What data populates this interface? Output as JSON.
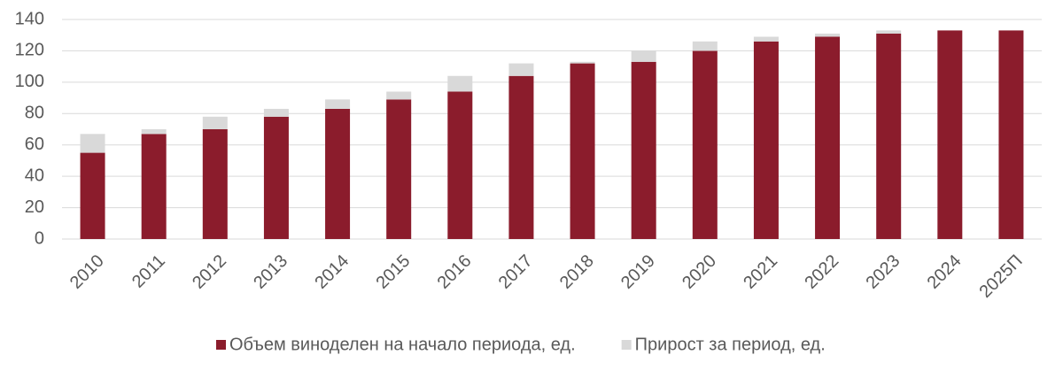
{
  "chart_data": {
    "type": "stacked_bar",
    "categories": [
      "2010",
      "2011",
      "2012",
      "2013",
      "2014",
      "2015",
      "2016",
      "2017",
      "2018",
      "2019",
      "2020",
      "2021",
      "2022",
      "2023",
      "2024",
      "2025П"
    ],
    "series": [
      {
        "name": "Объем виноделен на начало периода, ед.",
        "color": "#8b1c2c",
        "values": [
          55,
          67,
          70,
          78,
          83,
          89,
          94,
          104,
          112,
          113,
          120,
          126,
          129,
          131,
          133,
          133
        ]
      },
      {
        "name": "Прирост за период, ед.",
        "color": "#d9d9d9",
        "values": [
          12,
          3,
          8,
          5,
          6,
          5,
          10,
          8,
          1,
          7,
          6,
          3,
          2,
          2,
          0,
          0
        ]
      }
    ],
    "ylim": [
      0,
      140
    ],
    "yticks": [
      0,
      20,
      40,
      60,
      80,
      100,
      120,
      140
    ],
    "grid": true
  }
}
